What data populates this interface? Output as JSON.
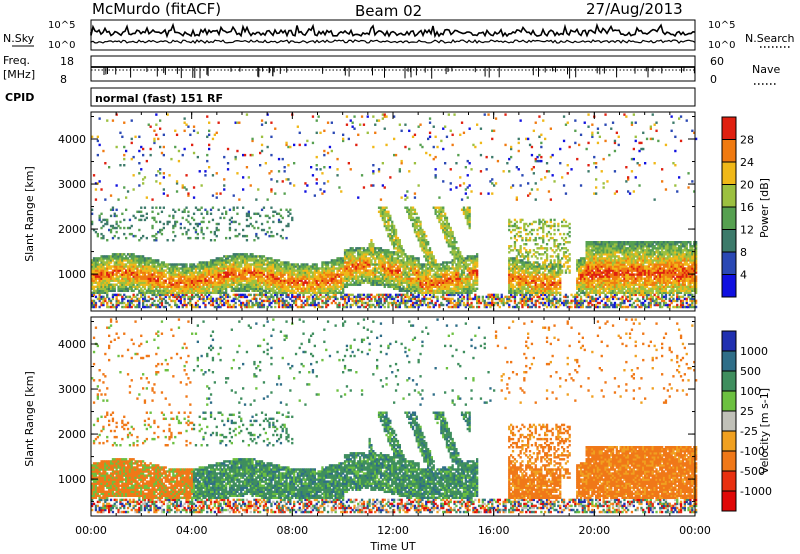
{
  "header": {
    "station": "McMurdo (fitACF)",
    "beam": "Beam 02",
    "date": "27/Aug/2013"
  },
  "aux": {
    "nsky_label": "N.Sky",
    "nsearch_label": "N.Search",
    "noise_ticks": [
      "10^5",
      "10^0"
    ],
    "freq_label": "Freq.",
    "freq_unit": "[MHz]",
    "freq_ticks": [
      "18",
      "8"
    ],
    "nave_label": "Nave",
    "nave_ticks": [
      "60",
      "0"
    ],
    "cpid_label": "CPID",
    "cpid_value": "normal (fast) 151 RF"
  },
  "chart_data": [
    {
      "type": "heatmap",
      "title": "",
      "xlabel": "Time UT",
      "ylabel": "Slant Range [km]",
      "xlim": [
        0,
        24
      ],
      "ylim": [
        180,
        4600
      ],
      "x_ticks": [
        "00:00",
        "04:00",
        "08:00",
        "12:00",
        "16:00",
        "20:00",
        "00:00"
      ],
      "y_ticks": [
        "1000",
        "2000",
        "3000",
        "4000"
      ],
      "colorbar": {
        "label": "Power [dB]",
        "ticks": [
          "4",
          "8",
          "12",
          "16",
          "20",
          "24",
          "28"
        ],
        "colors": [
          "#1010e0",
          "#2a48b4",
          "#3c7a6a",
          "#56a050",
          "#9cc040",
          "#f0b818",
          "#f07a10",
          "#e02010"
        ]
      }
    },
    {
      "type": "heatmap",
      "title": "",
      "xlabel": "Time UT",
      "ylabel": "Slant Range [km]",
      "xlim": [
        0,
        24
      ],
      "ylim": [
        180,
        4600
      ],
      "x_ticks": [
        "00:00",
        "04:00",
        "08:00",
        "12:00",
        "16:00",
        "20:00",
        "00:00"
      ],
      "y_ticks": [
        "1000",
        "2000",
        "3000",
        "4000"
      ],
      "colorbar": {
        "label": "Velocity [m s-1]",
        "ticks": [
          "1000",
          "500",
          "100",
          "25",
          "-25",
          "-100",
          "-500",
          "-1000"
        ],
        "colors": [
          "#2030b0",
          "#2f6e88",
          "#3f8e5e",
          "#6cc040",
          "#c0c0b8",
          "#f0a020",
          "#f07818",
          "#e83010",
          "#e00808"
        ]
      }
    }
  ]
}
